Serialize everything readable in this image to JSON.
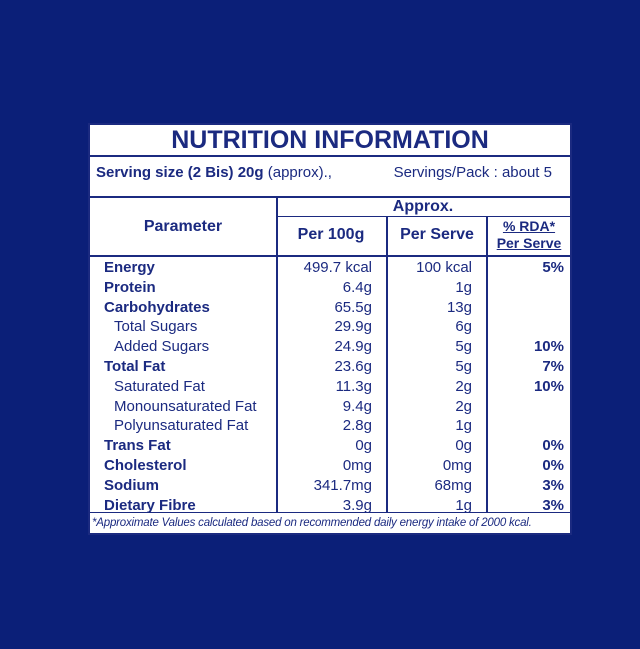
{
  "title": "NUTRITION INFORMATION",
  "serving": {
    "size_label": "Serving size (2 Bis) 20g",
    "size_note": "(approx).,",
    "servings": "Servings/Pack : about 5"
  },
  "table": {
    "header": {
      "parameter": "Parameter",
      "approx": "Approx.",
      "per100": "Per 100g",
      "per_serve": "Per Serve",
      "rda": "% RDA*",
      "rda_sub": "Per Serve"
    },
    "rows": [
      [
        "Energy",
        "499.7 kcal",
        "100 kcal",
        "5%"
      ],
      [
        "Protein",
        "6.4g",
        "1g",
        null
      ],
      [
        "Carbohydrates",
        "65.5g",
        "13g",
        null
      ],
      [
        "Total Sugars",
        "29.9g",
        "6g",
        null
      ],
      [
        "Added Sugars",
        "24.9g",
        "5g",
        "10%"
      ],
      [
        "Total Fat",
        "23.6g",
        "5g",
        "7%"
      ],
      [
        "Saturated Fat",
        "11.3g",
        "2g",
        "10%"
      ],
      [
        "Monounsaturated Fat",
        "9.4g",
        "2g",
        null
      ],
      [
        "Polyunsaturated Fat",
        "2.8g",
        "1g",
        null
      ],
      [
        "Trans Fat",
        "0g",
        "0g",
        "0%"
      ],
      [
        "Cholesterol",
        "0mg",
        "0mg",
        "0%"
      ],
      [
        "Sodium",
        "341.7mg",
        "68mg",
        "3%"
      ],
      [
        "Dietary Fibre",
        "3.9g",
        "1g",
        "3%"
      ]
    ]
  },
  "footnote": "*Approximate Values calculated based on recommended daily energy intake of 2000 kcal."
}
